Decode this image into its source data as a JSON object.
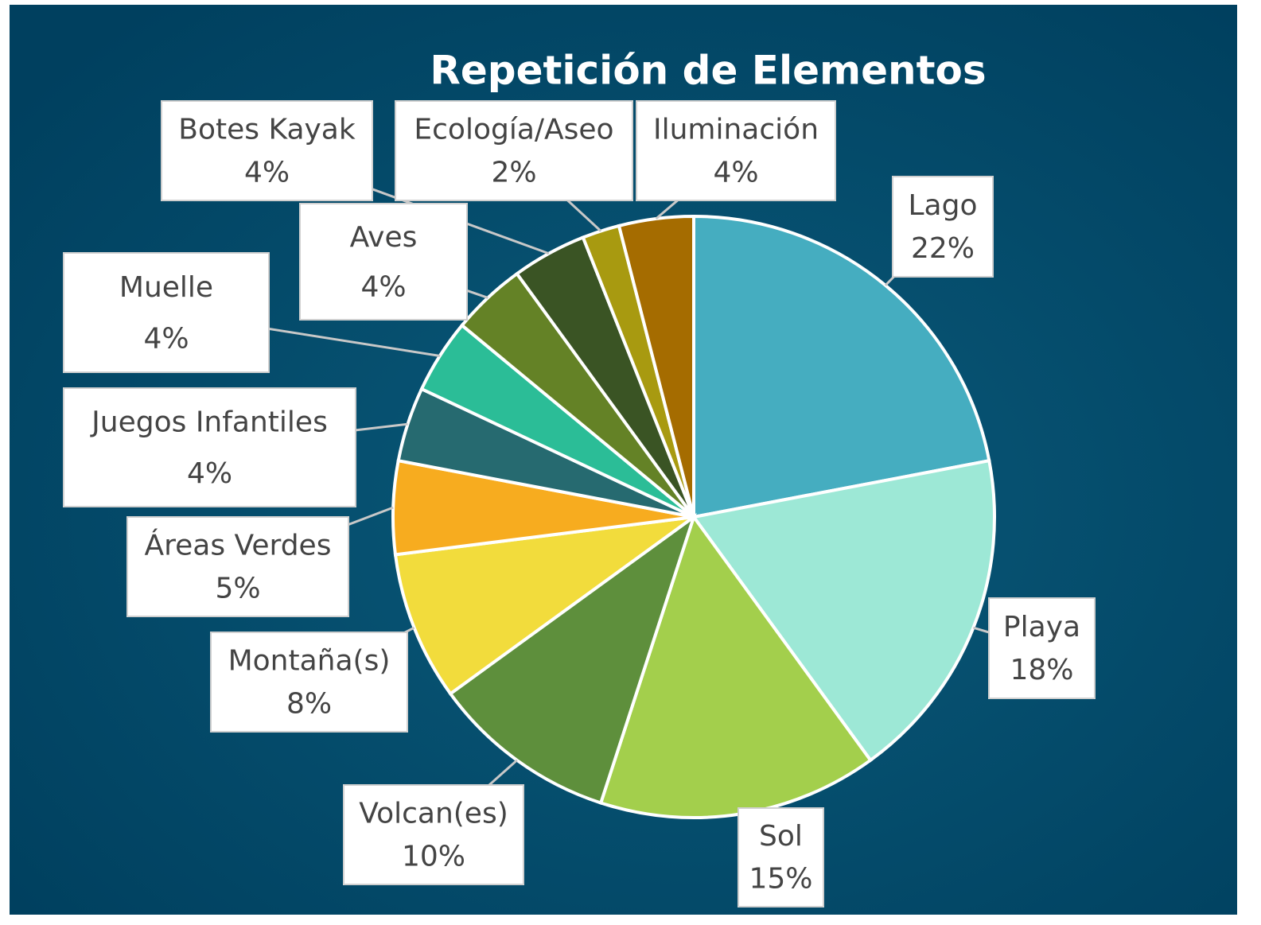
{
  "chart_data": {
    "type": "pie",
    "title": "Repetición de Elementos",
    "categories": [
      "Lago",
      "Playa",
      "Sol",
      "Volcan(es)",
      "Montaña(s)",
      "Áreas Verdes",
      "Juegos Infantiles",
      "Muelle",
      "Aves",
      "Botes Kayak",
      "Ecología/Aseo",
      "Iluminación"
    ],
    "values": [
      22,
      18,
      15,
      10,
      8,
      5,
      4,
      4,
      4,
      4,
      2,
      4
    ],
    "value_labels": [
      "22%",
      "18%",
      "15%",
      "10%",
      "8%",
      "5%",
      "4%",
      "4%",
      "4%",
      "4%",
      "2%",
      "4%"
    ],
    "colors": [
      "#45adc0",
      "#9de8d6",
      "#a3cf4c",
      "#5e8f3c",
      "#f2dc3c",
      "#f7ac1f",
      "#266a70",
      "#2bbd97",
      "#648226",
      "#3a5424",
      "#a89a10",
      "#a56c00"
    ]
  }
}
